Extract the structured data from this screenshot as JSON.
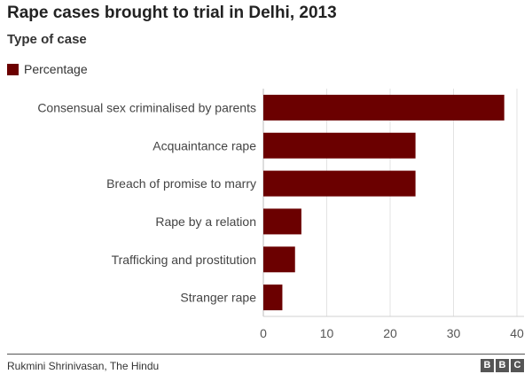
{
  "header": {
    "title": "Rape cases brought to trial in Delhi, 2013",
    "subtitle": "Type of case"
  },
  "legend": {
    "label": "Percentage",
    "color": "#6b0000"
  },
  "chart_data": {
    "type": "bar",
    "orientation": "horizontal",
    "categories": [
      "Consensual sex criminalised by parents",
      "Acquaintance rape",
      "Breach of promise to marry",
      "Rape by a relation",
      "Trafficking and prostitution",
      "Stranger rape"
    ],
    "series": [
      {
        "name": "Percentage",
        "values": [
          38,
          24,
          24,
          6,
          5,
          3
        ],
        "color": "#6b0000"
      }
    ],
    "xlim": [
      0,
      40
    ],
    "xticks": [
      "0",
      "10",
      "20",
      "30",
      "40"
    ],
    "grid": true,
    "legend_position": "top-left"
  },
  "footer": {
    "source": "Rukmini Shrinivasan, The Hindu",
    "logo": [
      "B",
      "B",
      "C"
    ]
  }
}
